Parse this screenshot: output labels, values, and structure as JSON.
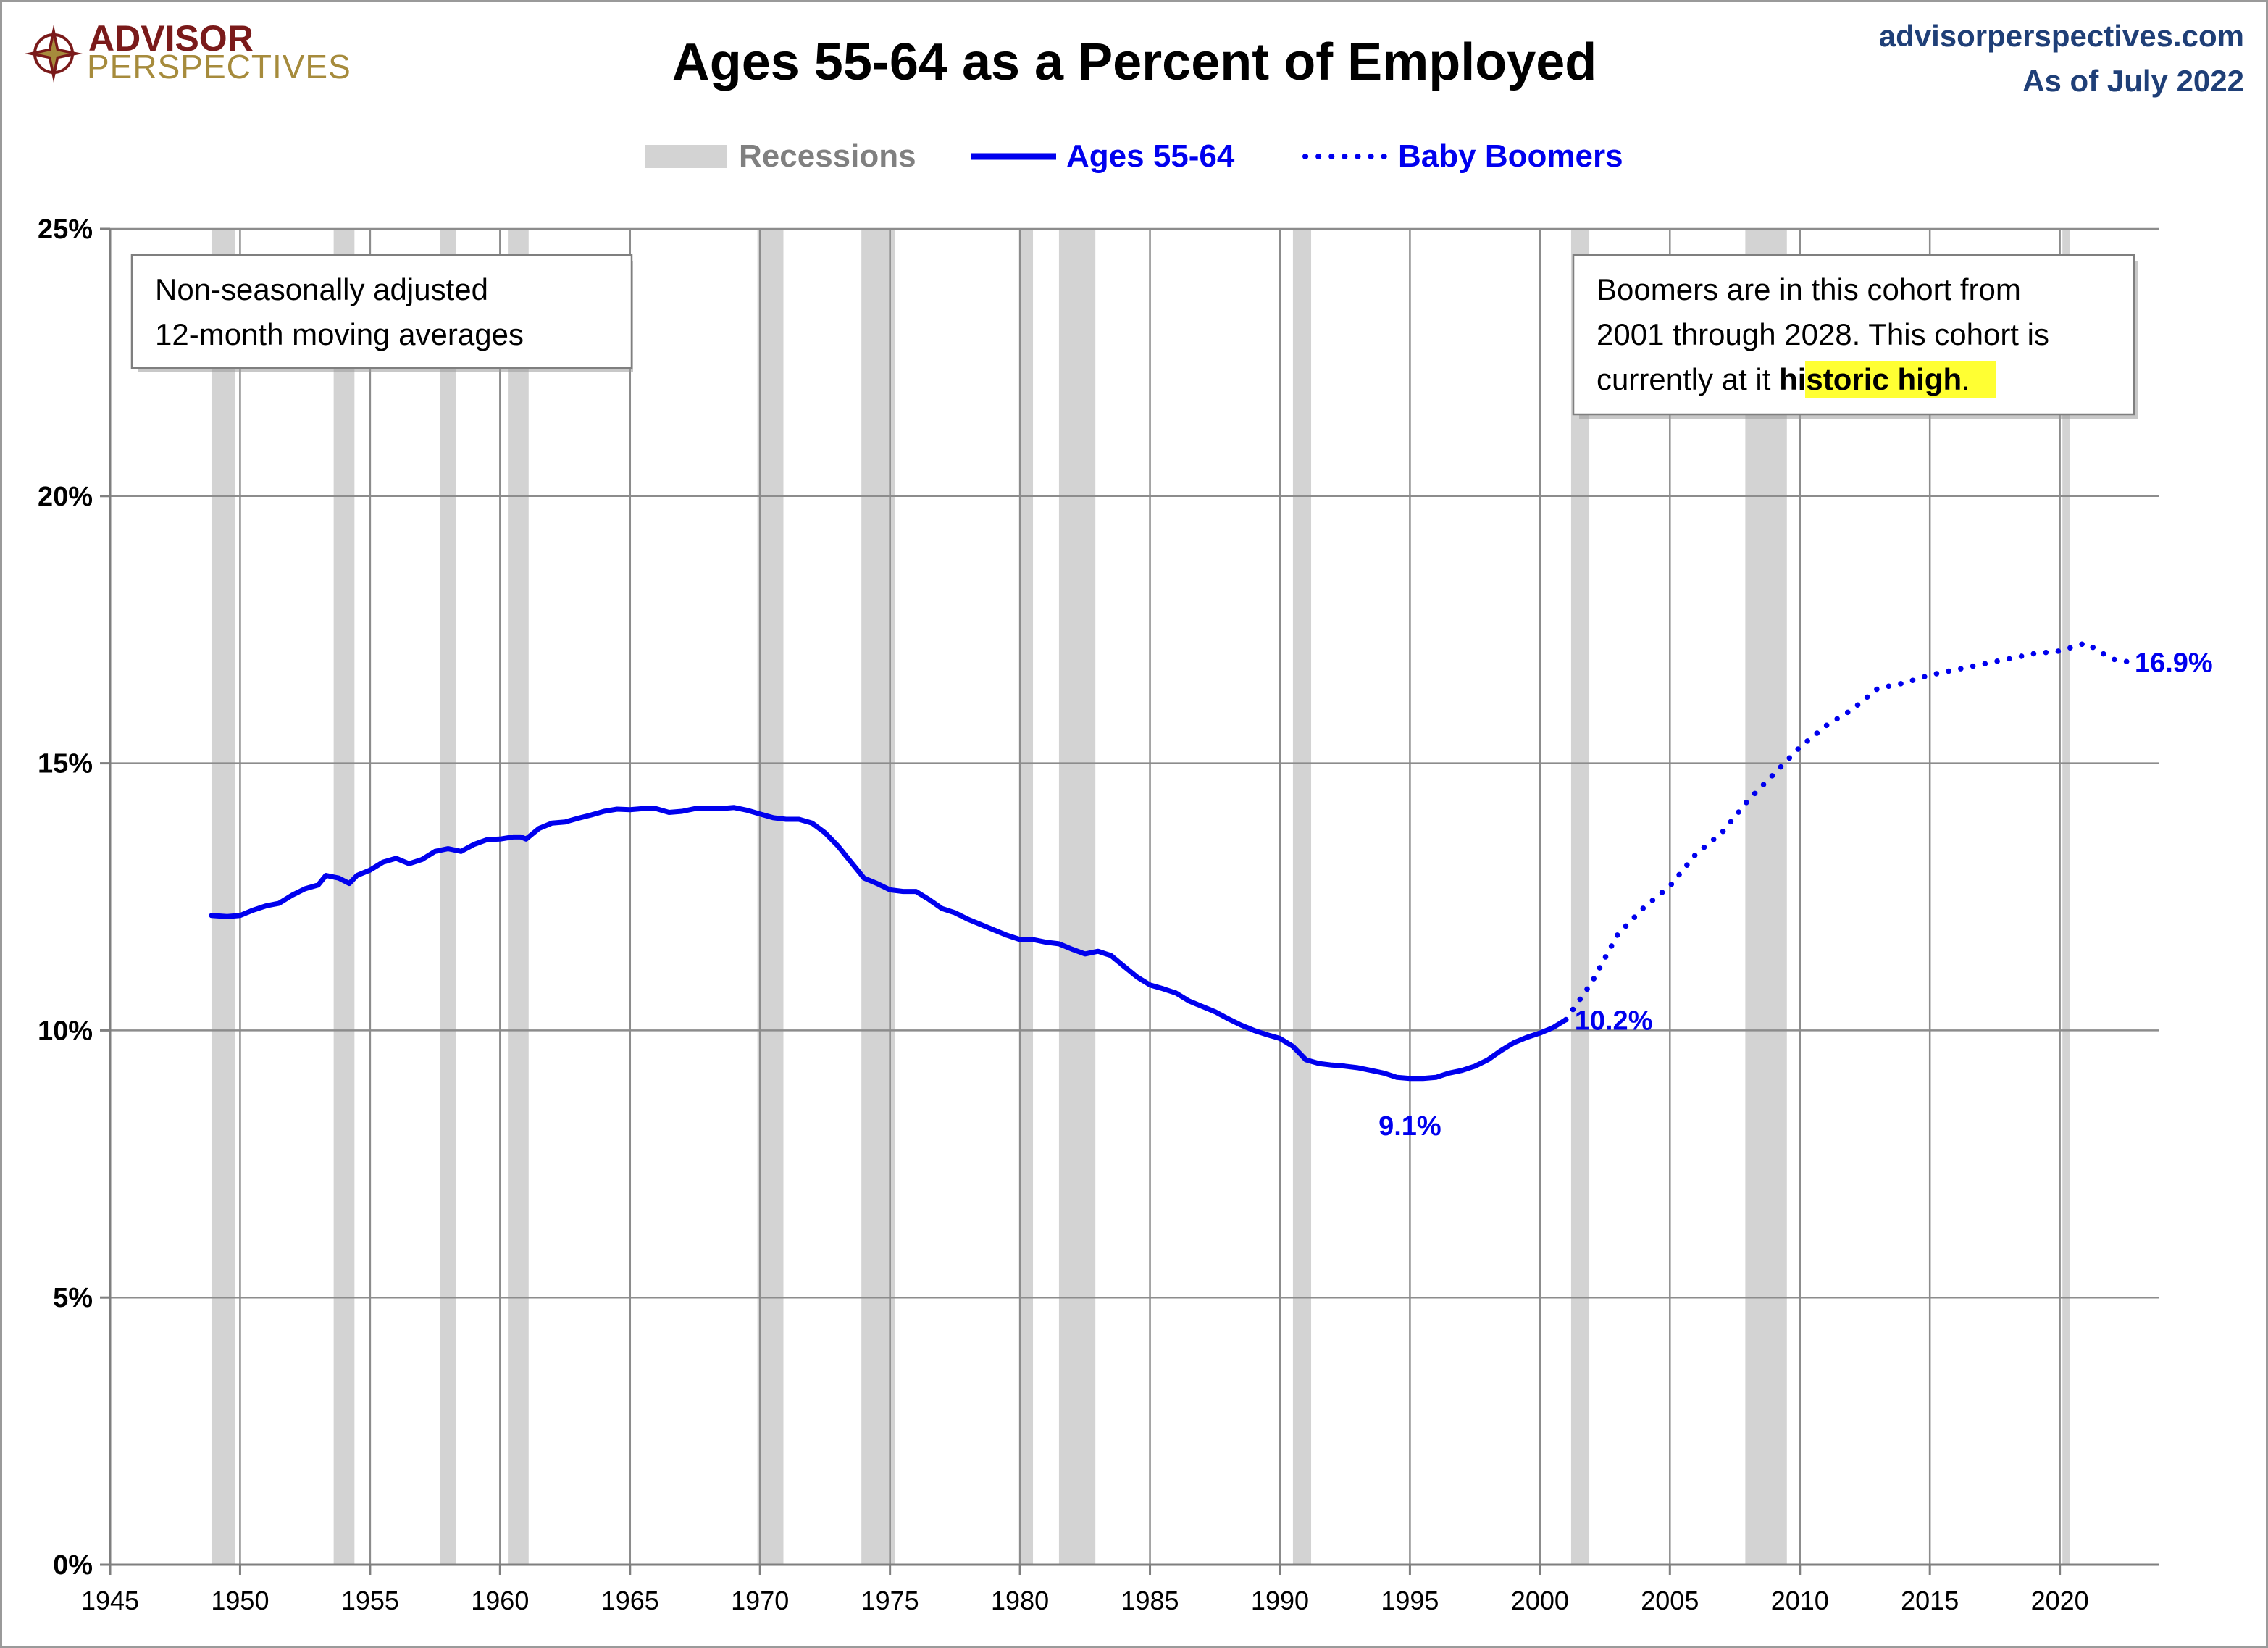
{
  "header": {
    "logo_word1": "ADVISOR",
    "logo_word2": "PERSPECTIVES",
    "site": "advisorperspectives.com",
    "as_of": "As of July 2022"
  },
  "legend": {
    "recessions": "Recessions",
    "series_main": "Ages 55-64",
    "series_dotted": "Baby Boomers"
  },
  "notes": {
    "left_line1": "Non-seasonally adjusted",
    "left_line2": "12-month moving averages",
    "right_line1": "Boomers are in this cohort from",
    "right_line2": "2001 through 2028. This cohort is",
    "right_line3_prefix": "currently at it ",
    "right_line3_highlight": "historic high",
    "right_line3_suffix": "."
  },
  "colors": {
    "series": "#0000ee",
    "recession": "#d3d3d3",
    "grid": "#8c8c8c",
    "highlight": "#ffff33",
    "site": "#1f3f77",
    "logo_dark": "#7a1a1a",
    "logo_light": "#a68b3c"
  },
  "chart_data": {
    "type": "line",
    "title": "Ages 55-64 as a Percent of Employed",
    "xlabel": "",
    "ylabel": "",
    "xlim": [
      1945,
      2023.8
    ],
    "ylim": [
      0,
      25
    ],
    "x_ticks": [
      1945,
      1950,
      1955,
      1960,
      1965,
      1970,
      1975,
      1980,
      1985,
      1990,
      1995,
      2000,
      2005,
      2010,
      2015,
      2020
    ],
    "x_tick_labels": [
      "1945",
      "1950",
      "1955",
      "1960",
      "1965",
      "1970",
      "1975",
      "1980",
      "1985",
      "1990",
      "1995",
      "2000",
      "2005",
      "2010",
      "2015",
      "2020"
    ],
    "y_ticks": [
      0,
      5,
      10,
      15,
      20,
      25
    ],
    "y_tick_labels": [
      "0%",
      "5%",
      "10%",
      "15%",
      "20%",
      "25%"
    ],
    "recessions": [
      [
        1948.9,
        1949.8
      ],
      [
        1953.6,
        1954.4
      ],
      [
        1957.7,
        1958.3
      ],
      [
        1960.3,
        1961.1
      ],
      [
        1969.9,
        1970.9
      ],
      [
        1973.9,
        1975.2
      ],
      [
        1980.0,
        1980.5
      ],
      [
        1981.5,
        1982.9
      ],
      [
        1990.5,
        1991.2
      ],
      [
        2001.2,
        2001.9
      ],
      [
        2007.9,
        2009.5
      ],
      [
        2020.1,
        2020.4
      ]
    ],
    "series": [
      {
        "name": "Ages 55-64",
        "style": "solid",
        "x": [
          1948.9,
          1949.5,
          1950.0,
          1950.5,
          1951.0,
          1951.5,
          1952.0,
          1952.5,
          1953.0,
          1953.3,
          1953.8,
          1954.2,
          1954.5,
          1955.0,
          1955.5,
          1956.0,
          1956.5,
          1957.0,
          1957.5,
          1958.0,
          1958.5,
          1959.0,
          1959.5,
          1960.0,
          1960.5,
          1960.8,
          1961.0,
          1961.5,
          1962.0,
          1962.5,
          1963.0,
          1963.5,
          1964.0,
          1964.5,
          1965.0,
          1965.5,
          1966.0,
          1966.5,
          1967.0,
          1967.5,
          1968.0,
          1968.5,
          1969.0,
          1969.5,
          1970.0,
          1970.5,
          1971.0,
          1971.5,
          1972.0,
          1972.5,
          1973.0,
          1973.5,
          1974.0,
          1974.5,
          1975.0,
          1975.5,
          1976.0,
          1976.5,
          1977.0,
          1977.5,
          1978.0,
          1978.5,
          1979.0,
          1979.5,
          1980.0,
          1980.5,
          1981.0,
          1981.5,
          1982.0,
          1982.5,
          1983.0,
          1983.5,
          1984.0,
          1984.5,
          1985.0,
          1985.5,
          1986.0,
          1986.5,
          1987.0,
          1987.5,
          1988.0,
          1988.5,
          1989.0,
          1989.5,
          1990.0,
          1990.5,
          1991.0,
          1991.5,
          1992.0,
          1992.5,
          1993.0,
          1993.5,
          1994.0,
          1994.5,
          1995.0,
          1995.5,
          1996.0,
          1996.5,
          1997.0,
          1997.5,
          1998.0,
          1998.5,
          1999.0,
          1999.5,
          2000.0,
          2000.5,
          2001.0
        ],
        "y": [
          12.15,
          12.13,
          12.15,
          12.25,
          12.33,
          12.38,
          12.53,
          12.65,
          12.72,
          12.9,
          12.85,
          12.75,
          12.9,
          13.0,
          13.15,
          13.22,
          13.12,
          13.2,
          13.35,
          13.4,
          13.35,
          13.48,
          13.57,
          13.58,
          13.62,
          13.62,
          13.58,
          13.78,
          13.88,
          13.9,
          13.97,
          14.03,
          14.1,
          14.14,
          14.13,
          14.15,
          14.15,
          14.08,
          14.1,
          14.15,
          14.15,
          14.15,
          14.17,
          14.12,
          14.05,
          13.98,
          13.95,
          13.95,
          13.88,
          13.7,
          13.45,
          13.15,
          12.85,
          12.75,
          12.63,
          12.6,
          12.6,
          12.45,
          12.28,
          12.2,
          12.08,
          11.98,
          11.88,
          11.78,
          11.7,
          11.7,
          11.65,
          11.62,
          11.52,
          11.43,
          11.48,
          11.4,
          11.2,
          11.0,
          10.85,
          10.78,
          10.7,
          10.55,
          10.45,
          10.35,
          10.22,
          10.1,
          10.0,
          9.92,
          9.85,
          9.7,
          9.45,
          9.38,
          9.35,
          9.33,
          9.3,
          9.25,
          9.2,
          9.12,
          9.1,
          9.1,
          9.12,
          9.2,
          9.25,
          9.33,
          9.45,
          9.62,
          9.77,
          9.87,
          9.95,
          10.05,
          10.2
        ]
      },
      {
        "name": "Baby Boomers",
        "style": "dotted",
        "x": [
          2001.0,
          2002.0,
          2003.0,
          2004.0,
          2005.0,
          2006.0,
          2007.0,
          2008.0,
          2009.0,
          2010.0,
          2011.0,
          2012.0,
          2013.0,
          2014.0,
          2015.0,
          2016.0,
          2017.0,
          2018.0,
          2019.0,
          2020.0,
          2021.0,
          2022.0,
          2022.6
        ],
        "y": [
          10.2,
          10.9,
          11.8,
          12.3,
          12.7,
          13.3,
          13.7,
          14.3,
          14.8,
          15.3,
          15.7,
          16.0,
          16.4,
          16.5,
          16.65,
          16.75,
          16.85,
          16.95,
          17.05,
          17.1,
          17.25,
          16.95,
          16.9
        ]
      }
    ],
    "annotations": [
      {
        "text": "9.1%",
        "x": 1995.0,
        "y": 9.1
      },
      {
        "text": "10.2%",
        "x": 2001.0,
        "y": 10.2
      },
      {
        "text": "16.9%",
        "x": 2022.6,
        "y": 16.9
      }
    ]
  }
}
